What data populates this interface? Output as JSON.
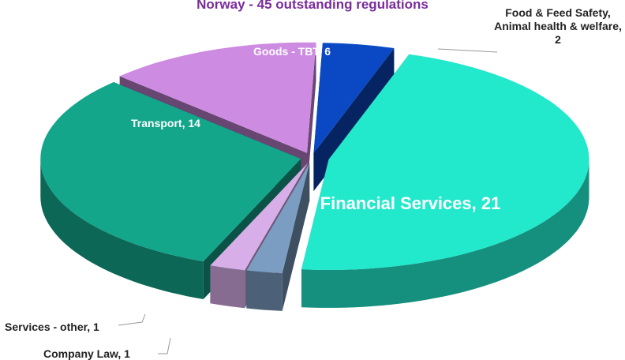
{
  "chart_data": {
    "type": "pie",
    "title": "Norway - 45 outstanding regulations",
    "values": [
      2,
      21,
      1,
      1,
      14,
      6
    ],
    "value_labels": [
      "Food & Feed Safety, Animal health & welfare, 2",
      "Financial Services, 21",
      "Company Law, 1",
      "Services - other, 1",
      "Transport, 14",
      "Goods - TBT, 6"
    ],
    "colors": [
      "#0b48c4",
      "#22e8cc",
      "#7b9dc2",
      "#d8aee9",
      "#13a68b",
      "#cd8be2"
    ]
  }
}
